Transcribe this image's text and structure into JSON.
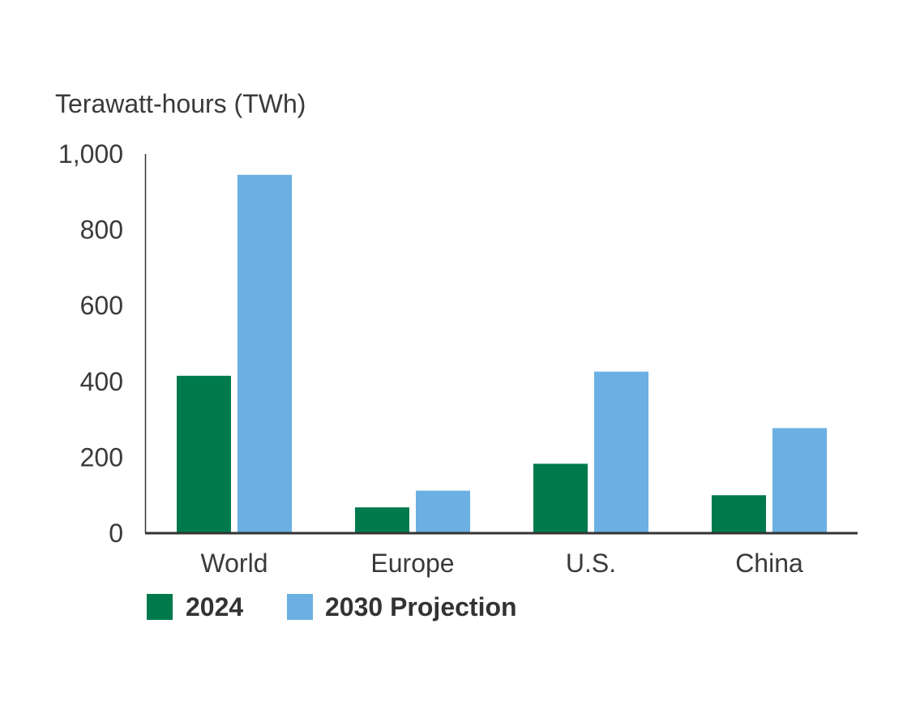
{
  "chart_data": {
    "type": "bar",
    "title": "",
    "xlabel": "",
    "ylabel": "Terawatt-hours (TWh)",
    "categories": [
      "World",
      "Europe",
      "U.S.",
      "China"
    ],
    "series": [
      {
        "name": "2024",
        "values": [
          415,
          68,
          183,
          100
        ],
        "color": "#007a4d"
      },
      {
        "name": "2030 Projection",
        "values": [
          945,
          112,
          426,
          277
        ],
        "color": "#6ab0e2"
      }
    ],
    "ylim": [
      0,
      1000
    ],
    "yticks": [
      0,
      200,
      400,
      600,
      800,
      1000
    ],
    "ytick_labels": [
      "0",
      "200",
      "400",
      "600",
      "800",
      "1,000"
    ],
    "grid": false,
    "legend_position": "bottom-left"
  }
}
